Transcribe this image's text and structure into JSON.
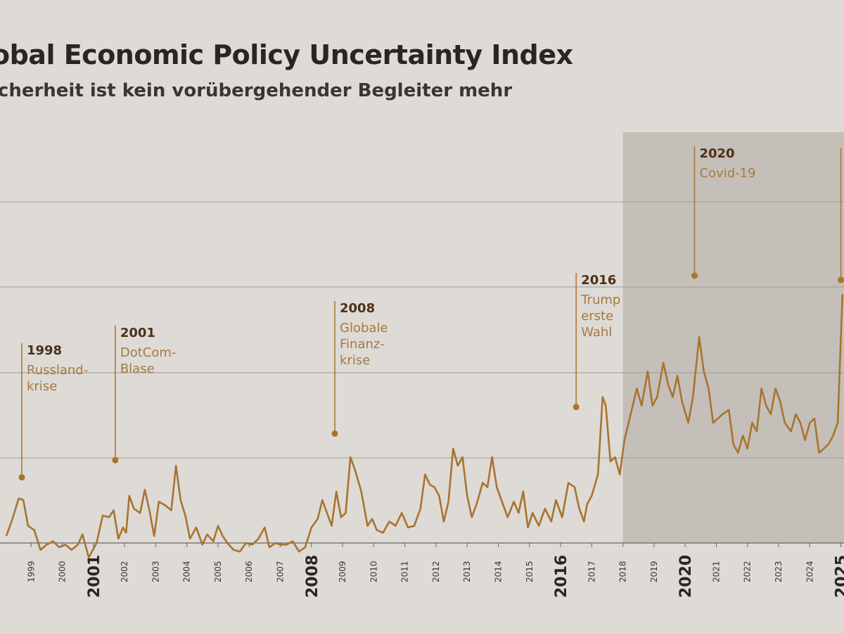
{
  "title": "obal Economic Policy Uncertainty Index",
  "subtitle": "icherheit ist kein vorübergehender Begleiter mehr",
  "colors": {
    "background": "#dedad6",
    "line": "#a8742e",
    "shade": "#c5bfb9",
    "grid": "#9c9892",
    "annotation_year": "#4a3218",
    "annotation_text": "#a67a3e"
  },
  "chart_data": {
    "type": "line",
    "title": "obal Economic Policy Uncertainty Index",
    "subtitle": "icherheit ist kein vorübergehender Begleiter mehr",
    "x_range": [
      1998.2,
      2025.1
    ],
    "y_range": [
      0,
      360
    ],
    "grid": true,
    "shaded_region": [
      2018.0,
      2025.1
    ],
    "tick_labels": [
      {
        "year": 1999,
        "label": "1999",
        "major": false
      },
      {
        "year": 2000,
        "label": "2000",
        "major": false
      },
      {
        "year": 2001,
        "label": "2001",
        "major": true
      },
      {
        "year": 2002,
        "label": "2002",
        "major": false
      },
      {
        "year": 2003,
        "label": "2003",
        "major": false
      },
      {
        "year": 2004,
        "label": "2004",
        "major": false
      },
      {
        "year": 2005,
        "label": "2005",
        "major": false
      },
      {
        "year": 2006,
        "label": "2006",
        "major": false
      },
      {
        "year": 2007,
        "label": "2007",
        "major": false
      },
      {
        "year": 2008,
        "label": "2008",
        "major": true
      },
      {
        "year": 2009,
        "label": "2009",
        "major": false
      },
      {
        "year": 2010,
        "label": "2010",
        "major": false
      },
      {
        "year": 2011,
        "label": "2011",
        "major": false
      },
      {
        "year": 2012,
        "label": "2012",
        "major": false
      },
      {
        "year": 2013,
        "label": "2013",
        "major": false
      },
      {
        "year": 2014,
        "label": "2014",
        "major": false
      },
      {
        "year": 2015,
        "label": "2015",
        "major": false
      },
      {
        "year": 2016,
        "label": "2016",
        "major": true
      },
      {
        "year": 2017,
        "label": "2017",
        "major": false
      },
      {
        "year": 2018,
        "label": "2018",
        "major": false
      },
      {
        "year": 2019,
        "label": "2019",
        "major": false
      },
      {
        "year": 2020,
        "label": "2020",
        "major": true
      },
      {
        "year": 2021,
        "label": "2021",
        "major": false
      },
      {
        "year": 2022,
        "label": "2022",
        "major": false
      },
      {
        "year": 2023,
        "label": "2023",
        "major": false
      },
      {
        "year": 2024,
        "label": "2024",
        "major": false
      },
      {
        "year": 2025,
        "label": "2025",
        "major": true
      }
    ],
    "annotations": [
      {
        "year": "1998",
        "lines": [
          "Russland-",
          "krise"
        ],
        "x": 1998.7,
        "y": 125
      },
      {
        "year": "2001",
        "lines": [
          "DotCom-",
          "Blase"
        ],
        "x": 2001.7,
        "y": 145
      },
      {
        "year": "2008",
        "lines": [
          "Globale",
          "Finanz-",
          "krise"
        ],
        "x": 2008.75,
        "y": 176
      },
      {
        "year": "2016",
        "lines": [
          "Trump",
          "erste",
          "Wahl"
        ],
        "x": 2016.5,
        "y": 207
      },
      {
        "year": "2020",
        "lines": [
          "Covid-19"
        ],
        "x": 2020.3,
        "y": 360
      },
      {
        "year": "",
        "lines": [],
        "x": 2025.0,
        "y": 355
      }
    ],
    "series": [
      {
        "values": [
          [
            1998.2,
            68
          ],
          [
            1998.4,
            88
          ],
          [
            1998.6,
            112
          ],
          [
            1998.75,
            110
          ],
          [
            1998.9,
            80
          ],
          [
            1999.1,
            75
          ],
          [
            1999.3,
            52
          ],
          [
            1999.5,
            58
          ],
          [
            1999.7,
            62
          ],
          [
            1999.9,
            55
          ],
          [
            2000.1,
            58
          ],
          [
            2000.3,
            52
          ],
          [
            2000.5,
            58
          ],
          [
            2000.65,
            70
          ],
          [
            2000.85,
            43
          ],
          [
            2001.1,
            60
          ],
          [
            2001.3,
            92
          ],
          [
            2001.5,
            90
          ],
          [
            2001.65,
            98
          ],
          [
            2001.8,
            65
          ],
          [
            2001.95,
            78
          ],
          [
            2002.05,
            72
          ],
          [
            2002.15,
            115
          ],
          [
            2002.3,
            100
          ],
          [
            2002.5,
            95
          ],
          [
            2002.65,
            122
          ],
          [
            2002.8,
            98
          ],
          [
            2002.95,
            68
          ],
          [
            2003.1,
            108
          ],
          [
            2003.3,
            104
          ],
          [
            2003.5,
            98
          ],
          [
            2003.65,
            150
          ],
          [
            2003.8,
            110
          ],
          [
            2003.95,
            92
          ],
          [
            2004.1,
            65
          ],
          [
            2004.3,
            78
          ],
          [
            2004.5,
            58
          ],
          [
            2004.65,
            70
          ],
          [
            2004.85,
            62
          ],
          [
            2005.0,
            80
          ],
          [
            2005.15,
            68
          ],
          [
            2005.3,
            60
          ],
          [
            2005.5,
            52
          ],
          [
            2005.7,
            50
          ],
          [
            2005.9,
            60
          ],
          [
            2006.1,
            58
          ],
          [
            2006.3,
            65
          ],
          [
            2006.5,
            78
          ],
          [
            2006.65,
            55
          ],
          [
            2006.85,
            60
          ],
          [
            2007.0,
            58
          ],
          [
            2007.2,
            58
          ],
          [
            2007.4,
            62
          ],
          [
            2007.6,
            50
          ],
          [
            2007.8,
            55
          ],
          [
            2008.0,
            78
          ],
          [
            2008.2,
            88
          ],
          [
            2008.35,
            110
          ],
          [
            2008.5,
            95
          ],
          [
            2008.65,
            80
          ],
          [
            2008.8,
            120
          ],
          [
            2008.95,
            90
          ],
          [
            2009.1,
            95
          ],
          [
            2009.25,
            160
          ],
          [
            2009.4,
            145
          ],
          [
            2009.6,
            120
          ],
          [
            2009.8,
            80
          ],
          [
            2009.95,
            88
          ],
          [
            2010.1,
            75
          ],
          [
            2010.3,
            72
          ],
          [
            2010.5,
            85
          ],
          [
            2010.7,
            80
          ],
          [
            2010.9,
            95
          ],
          [
            2011.1,
            78
          ],
          [
            2011.3,
            80
          ],
          [
            2011.5,
            100
          ],
          [
            2011.65,
            140
          ],
          [
            2011.8,
            128
          ],
          [
            2011.95,
            125
          ],
          [
            2012.1,
            115
          ],
          [
            2012.25,
            85
          ],
          [
            2012.4,
            108
          ],
          [
            2012.55,
            170
          ],
          [
            2012.7,
            150
          ],
          [
            2012.85,
            160
          ],
          [
            2013.0,
            115
          ],
          [
            2013.15,
            90
          ],
          [
            2013.3,
            105
          ],
          [
            2013.5,
            130
          ],
          [
            2013.65,
            125
          ],
          [
            2013.8,
            160
          ],
          [
            2013.95,
            125
          ],
          [
            2014.1,
            110
          ],
          [
            2014.3,
            90
          ],
          [
            2014.5,
            108
          ],
          [
            2014.65,
            95
          ],
          [
            2014.8,
            120
          ],
          [
            2014.95,
            78
          ],
          [
            2015.1,
            95
          ],
          [
            2015.3,
            80
          ],
          [
            2015.5,
            100
          ],
          [
            2015.7,
            85
          ],
          [
            2015.85,
            110
          ],
          [
            2016.05,
            90
          ],
          [
            2016.25,
            130
          ],
          [
            2016.45,
            125
          ],
          [
            2016.6,
            100
          ],
          [
            2016.75,
            85
          ],
          [
            2016.85,
            105
          ],
          [
            2017.0,
            115
          ],
          [
            2017.2,
            140
          ],
          [
            2017.35,
            230
          ],
          [
            2017.45,
            220
          ],
          [
            2017.6,
            155
          ],
          [
            2017.75,
            160
          ],
          [
            2017.9,
            140
          ],
          [
            2018.05,
            180
          ],
          [
            2018.25,
            210
          ],
          [
            2018.45,
            240
          ],
          [
            2018.6,
            220
          ],
          [
            2018.8,
            260
          ],
          [
            2018.95,
            220
          ],
          [
            2019.1,
            230
          ],
          [
            2019.3,
            270
          ],
          [
            2019.45,
            245
          ],
          [
            2019.6,
            230
          ],
          [
            2019.75,
            255
          ],
          [
            2019.9,
            225
          ],
          [
            2020.1,
            200
          ],
          [
            2020.25,
            230
          ],
          [
            2020.45,
            300
          ],
          [
            2020.6,
            260
          ],
          [
            2020.75,
            240
          ],
          [
            2020.9,
            200
          ],
          [
            2021.05,
            205
          ],
          [
            2021.2,
            210
          ],
          [
            2021.4,
            215
          ],
          [
            2021.55,
            175
          ],
          [
            2021.7,
            165
          ],
          [
            2021.85,
            185
          ],
          [
            2022.0,
            170
          ],
          [
            2022.15,
            200
          ],
          [
            2022.3,
            190
          ],
          [
            2022.45,
            240
          ],
          [
            2022.6,
            220
          ],
          [
            2022.75,
            210
          ],
          [
            2022.9,
            240
          ],
          [
            2023.05,
            225
          ],
          [
            2023.2,
            200
          ],
          [
            2023.4,
            190
          ],
          [
            2023.55,
            210
          ],
          [
            2023.7,
            200
          ],
          [
            2023.85,
            180
          ],
          [
            2024.0,
            200
          ],
          [
            2024.15,
            205
          ],
          [
            2024.3,
            165
          ],
          [
            2024.45,
            170
          ],
          [
            2024.6,
            175
          ],
          [
            2024.75,
            185
          ],
          [
            2024.9,
            200
          ],
          [
            2025.05,
            350
          ]
        ]
      }
    ]
  }
}
